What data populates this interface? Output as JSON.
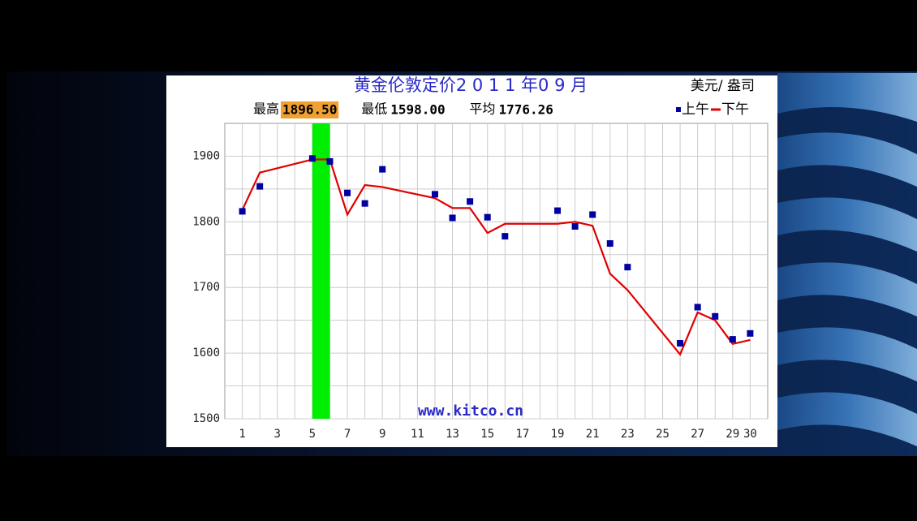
{
  "chart_data": {
    "type": "line",
    "title": "黄金伦敦定价2 0 1 1 年0 9 月",
    "unit": "美元/ 盎司",
    "stats": [
      {
        "name": "最高",
        "value": "1896.50"
      },
      {
        "name": "最低",
        "value": "1598.00"
      },
      {
        "name": "平均",
        "value": "1776.26"
      }
    ],
    "watermark": "www.kitco.cn",
    "x": [
      1,
      2,
      5,
      6,
      7,
      8,
      9,
      12,
      13,
      14,
      15,
      16,
      19,
      20,
      21,
      22,
      23,
      26,
      27,
      28,
      29,
      30
    ],
    "series": [
      {
        "name": "上午",
        "color": "#0000a0",
        "style": "marker",
        "values": [
          1816,
          1854,
          1896.5,
          1892,
          1844,
          1828,
          1880,
          1842,
          1806,
          1831,
          1807,
          1778,
          1817,
          1793,
          1811,
          1767,
          1731,
          1615,
          1670,
          1656,
          1621,
          1630
        ]
      },
      {
        "name": "下午",
        "color": "#e00000",
        "style": "line",
        "values": [
          1818,
          1875,
          1895,
          1895,
          1811,
          1856,
          1853,
          1836,
          1821,
          1821,
          1783,
          1797,
          1797,
          1800,
          1794,
          1721,
          1696,
          1598,
          1662,
          1650,
          1614,
          1620
        ]
      }
    ],
    "highlight_x": [
      5,
      6
    ],
    "highlight_color": "#00ee00",
    "xlim": [
      0,
      31
    ],
    "xticks": [
      1,
      3,
      5,
      7,
      9,
      11,
      13,
      15,
      17,
      19,
      21,
      23,
      25,
      27,
      29,
      30
    ],
    "x_minor_ticks": [
      2,
      4,
      6,
      8,
      10,
      12,
      14,
      16,
      18,
      20,
      22,
      24,
      26,
      28
    ],
    "ylim": [
      1500,
      1950
    ],
    "yticks": [
      1500,
      1600,
      1700,
      1800,
      1900
    ],
    "y_minor_ticks": [
      1550,
      1650,
      1750,
      1850
    ],
    "grid": true
  }
}
